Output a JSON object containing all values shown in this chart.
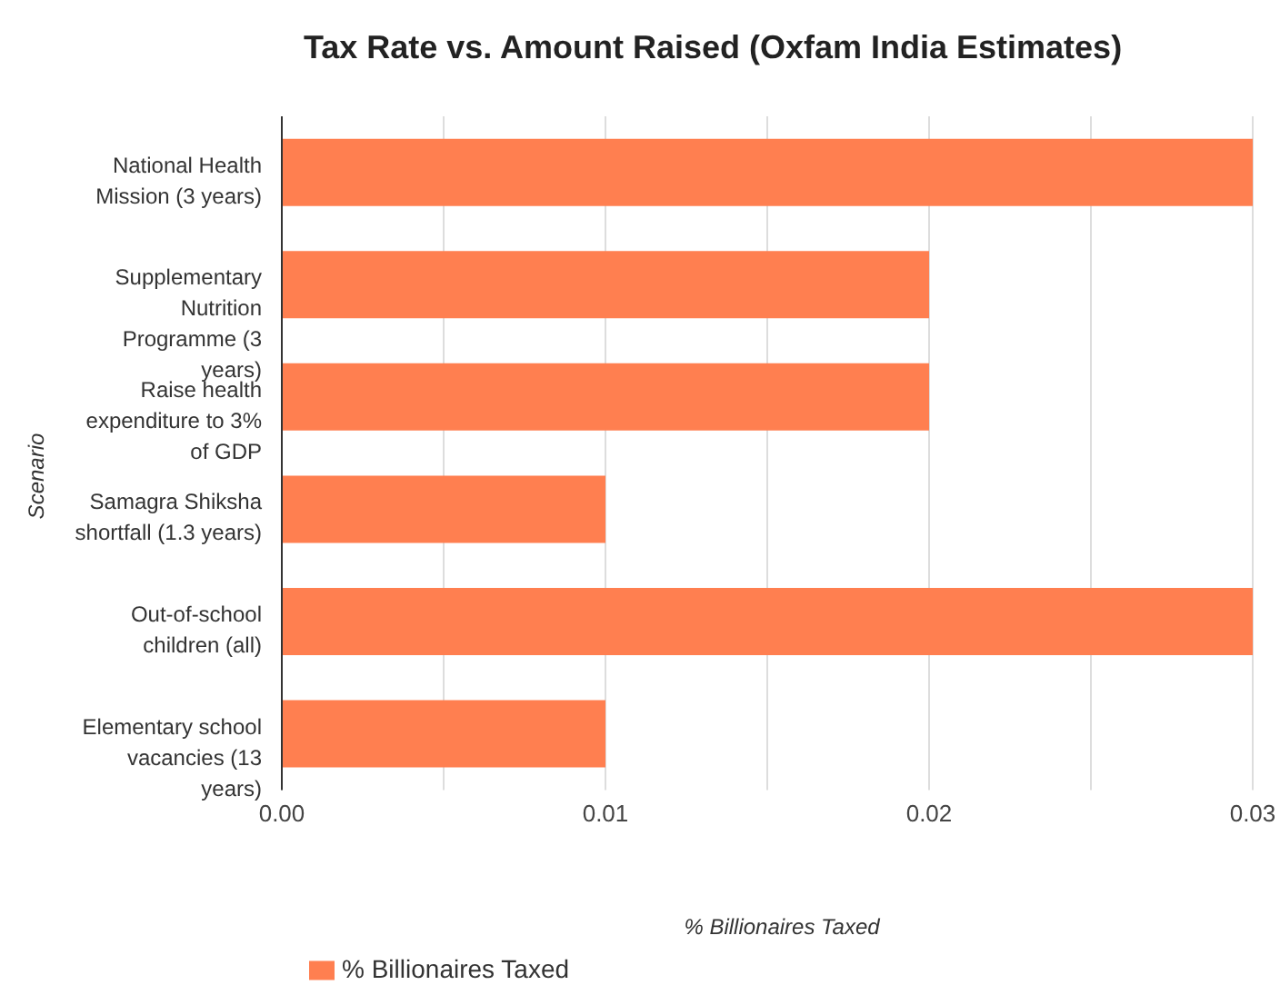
{
  "chart_data": {
    "type": "bar",
    "orientation": "horizontal",
    "title": "Tax Rate vs. Amount Raised (Oxfam India Estimates)",
    "xlabel": "% Billionaires Taxed",
    "ylabel": "Scenario",
    "categories": [
      "National Health Mission (3 years)",
      "Supplementary Nutrition Programme (3 years)",
      "Raise health expenditure to 3% of GDP",
      "Samagra Shiksha shortfall (1.3 years)",
      "Out-of-school children (all)",
      "Elementary school vacancies (13 years)"
    ],
    "series": [
      {
        "name": "% Billionaires Taxed",
        "color": "#ff7f50",
        "values": [
          0.03,
          0.02,
          0.02,
          0.01,
          0.03,
          0.01
        ]
      }
    ],
    "xlim": [
      0,
      0.03
    ],
    "xticks": [
      {
        "value": 0,
        "label": "0.00"
      },
      {
        "value": 0.005,
        "label": null
      },
      {
        "value": 0.01,
        "label": "0.01"
      },
      {
        "value": 0.015,
        "label": null
      },
      {
        "value": 0.02,
        "label": "0.02"
      },
      {
        "value": 0.025,
        "label": null
      },
      {
        "value": 0.03,
        "label": "0.03"
      }
    ],
    "grid": "x",
    "legend": "bottom left"
  }
}
